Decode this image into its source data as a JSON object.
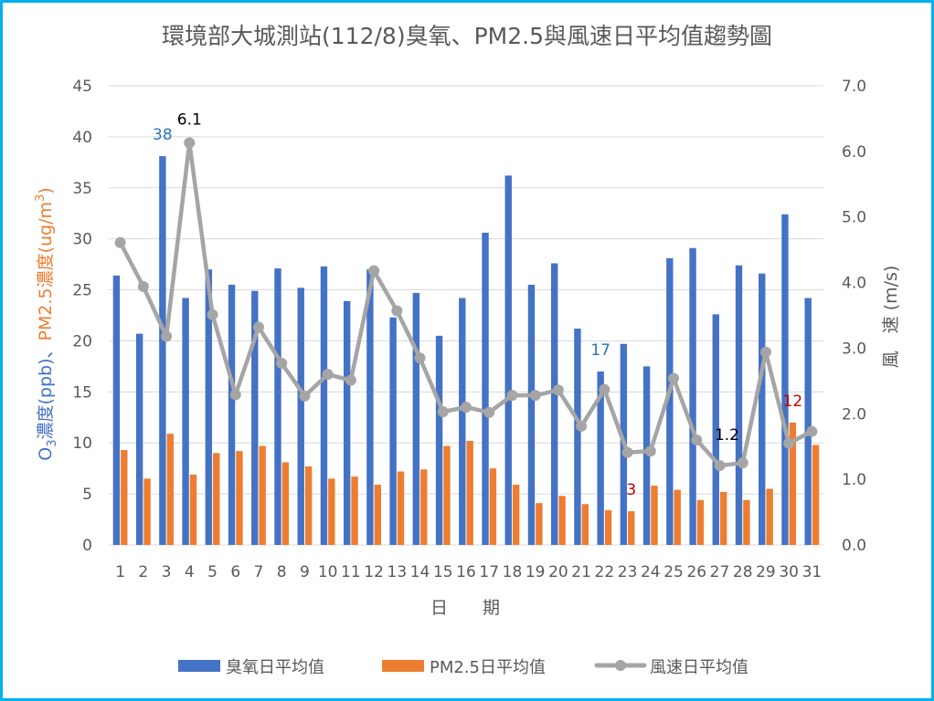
{
  "chart_data": {
    "type": "bar",
    "title": "環境部大城測站(112/8)臭氧、PM2.5與風速日平均值趨勢圖",
    "xlabel": "日　　期",
    "ylabel_left": {
      "o3_part": "O",
      "o3_sub": "3",
      "o3_rest": "濃度(ppb)、",
      "pm_part": "PM2.5濃度(ug/m",
      "pm_sup": "3",
      "pm_close": ")"
    },
    "ylabel_right": "風　速 (m/s)",
    "ylim_left": [
      0,
      45
    ],
    "ylim_right": [
      0,
      7
    ],
    "left_ticks": [
      "0",
      "5",
      "10",
      "15",
      "20",
      "25",
      "30",
      "35",
      "40",
      "45"
    ],
    "right_ticks": [
      "0.0",
      "1.0",
      "2.0",
      "3.0",
      "4.0",
      "5.0",
      "6.0",
      "7.0"
    ],
    "categories": [
      "1",
      "2",
      "3",
      "4",
      "5",
      "6",
      "7",
      "8",
      "9",
      "10",
      "11",
      "12",
      "13",
      "14",
      "15",
      "16",
      "17",
      "18",
      "19",
      "20",
      "21",
      "22",
      "23",
      "24",
      "25",
      "26",
      "27",
      "28",
      "29",
      "30",
      "31"
    ],
    "series": [
      {
        "name": "臭氧日平均值",
        "kind": "bar",
        "axis": "left",
        "color": "#4472C4",
        "values": [
          26.4,
          20.7,
          38.1,
          24.2,
          27.0,
          25.5,
          24.9,
          27.1,
          25.2,
          27.3,
          23.9,
          27.0,
          22.3,
          24.7,
          20.5,
          24.2,
          30.6,
          36.2,
          25.5,
          27.6,
          21.2,
          17.0,
          19.7,
          17.5,
          28.1,
          29.1,
          22.6,
          27.4,
          26.6,
          32.4,
          24.2
        ]
      },
      {
        "name": "PM2.5日平均值",
        "kind": "bar",
        "axis": "left",
        "color": "#ED7D31",
        "values": [
          9.3,
          6.5,
          10.9,
          6.9,
          9.0,
          9.2,
          9.7,
          8.1,
          7.7,
          6.5,
          6.7,
          5.9,
          7.2,
          7.4,
          9.7,
          10.2,
          7.5,
          5.9,
          4.1,
          4.8,
          4.0,
          3.4,
          3.3,
          5.8,
          5.4,
          4.4,
          5.2,
          4.4,
          5.5,
          12.0,
          9.8
        ]
      },
      {
        "name": "風速日平均值",
        "kind": "line",
        "axis": "right",
        "color": "#A5A5A5",
        "values": [
          4.61,
          3.94,
          3.18,
          6.13,
          3.51,
          2.29,
          3.32,
          2.77,
          2.27,
          2.6,
          2.51,
          4.18,
          3.57,
          2.85,
          2.03,
          2.1,
          2.02,
          2.28,
          2.28,
          2.36,
          1.81,
          2.37,
          1.41,
          1.43,
          2.54,
          1.6,
          1.21,
          1.25,
          2.94,
          1.55,
          1.73
        ]
      }
    ],
    "annotations": [
      {
        "text": "38",
        "series": 0,
        "index": 2,
        "color": "#2E75B6"
      },
      {
        "text": "6.1",
        "series": 2,
        "index": 3,
        "color": "#000000"
      },
      {
        "text": "17",
        "series": 0,
        "index": 21,
        "color": "#2E75B6"
      },
      {
        "text": "3",
        "series": 1,
        "index": 22,
        "color": "#C00000"
      },
      {
        "text": "1.2",
        "series": 2,
        "index": 26,
        "color": "#000000"
      },
      {
        "text": "12",
        "series": 1,
        "index": 29,
        "color": "#C00000"
      }
    ],
    "grid": true,
    "legend_position": "bottom"
  }
}
